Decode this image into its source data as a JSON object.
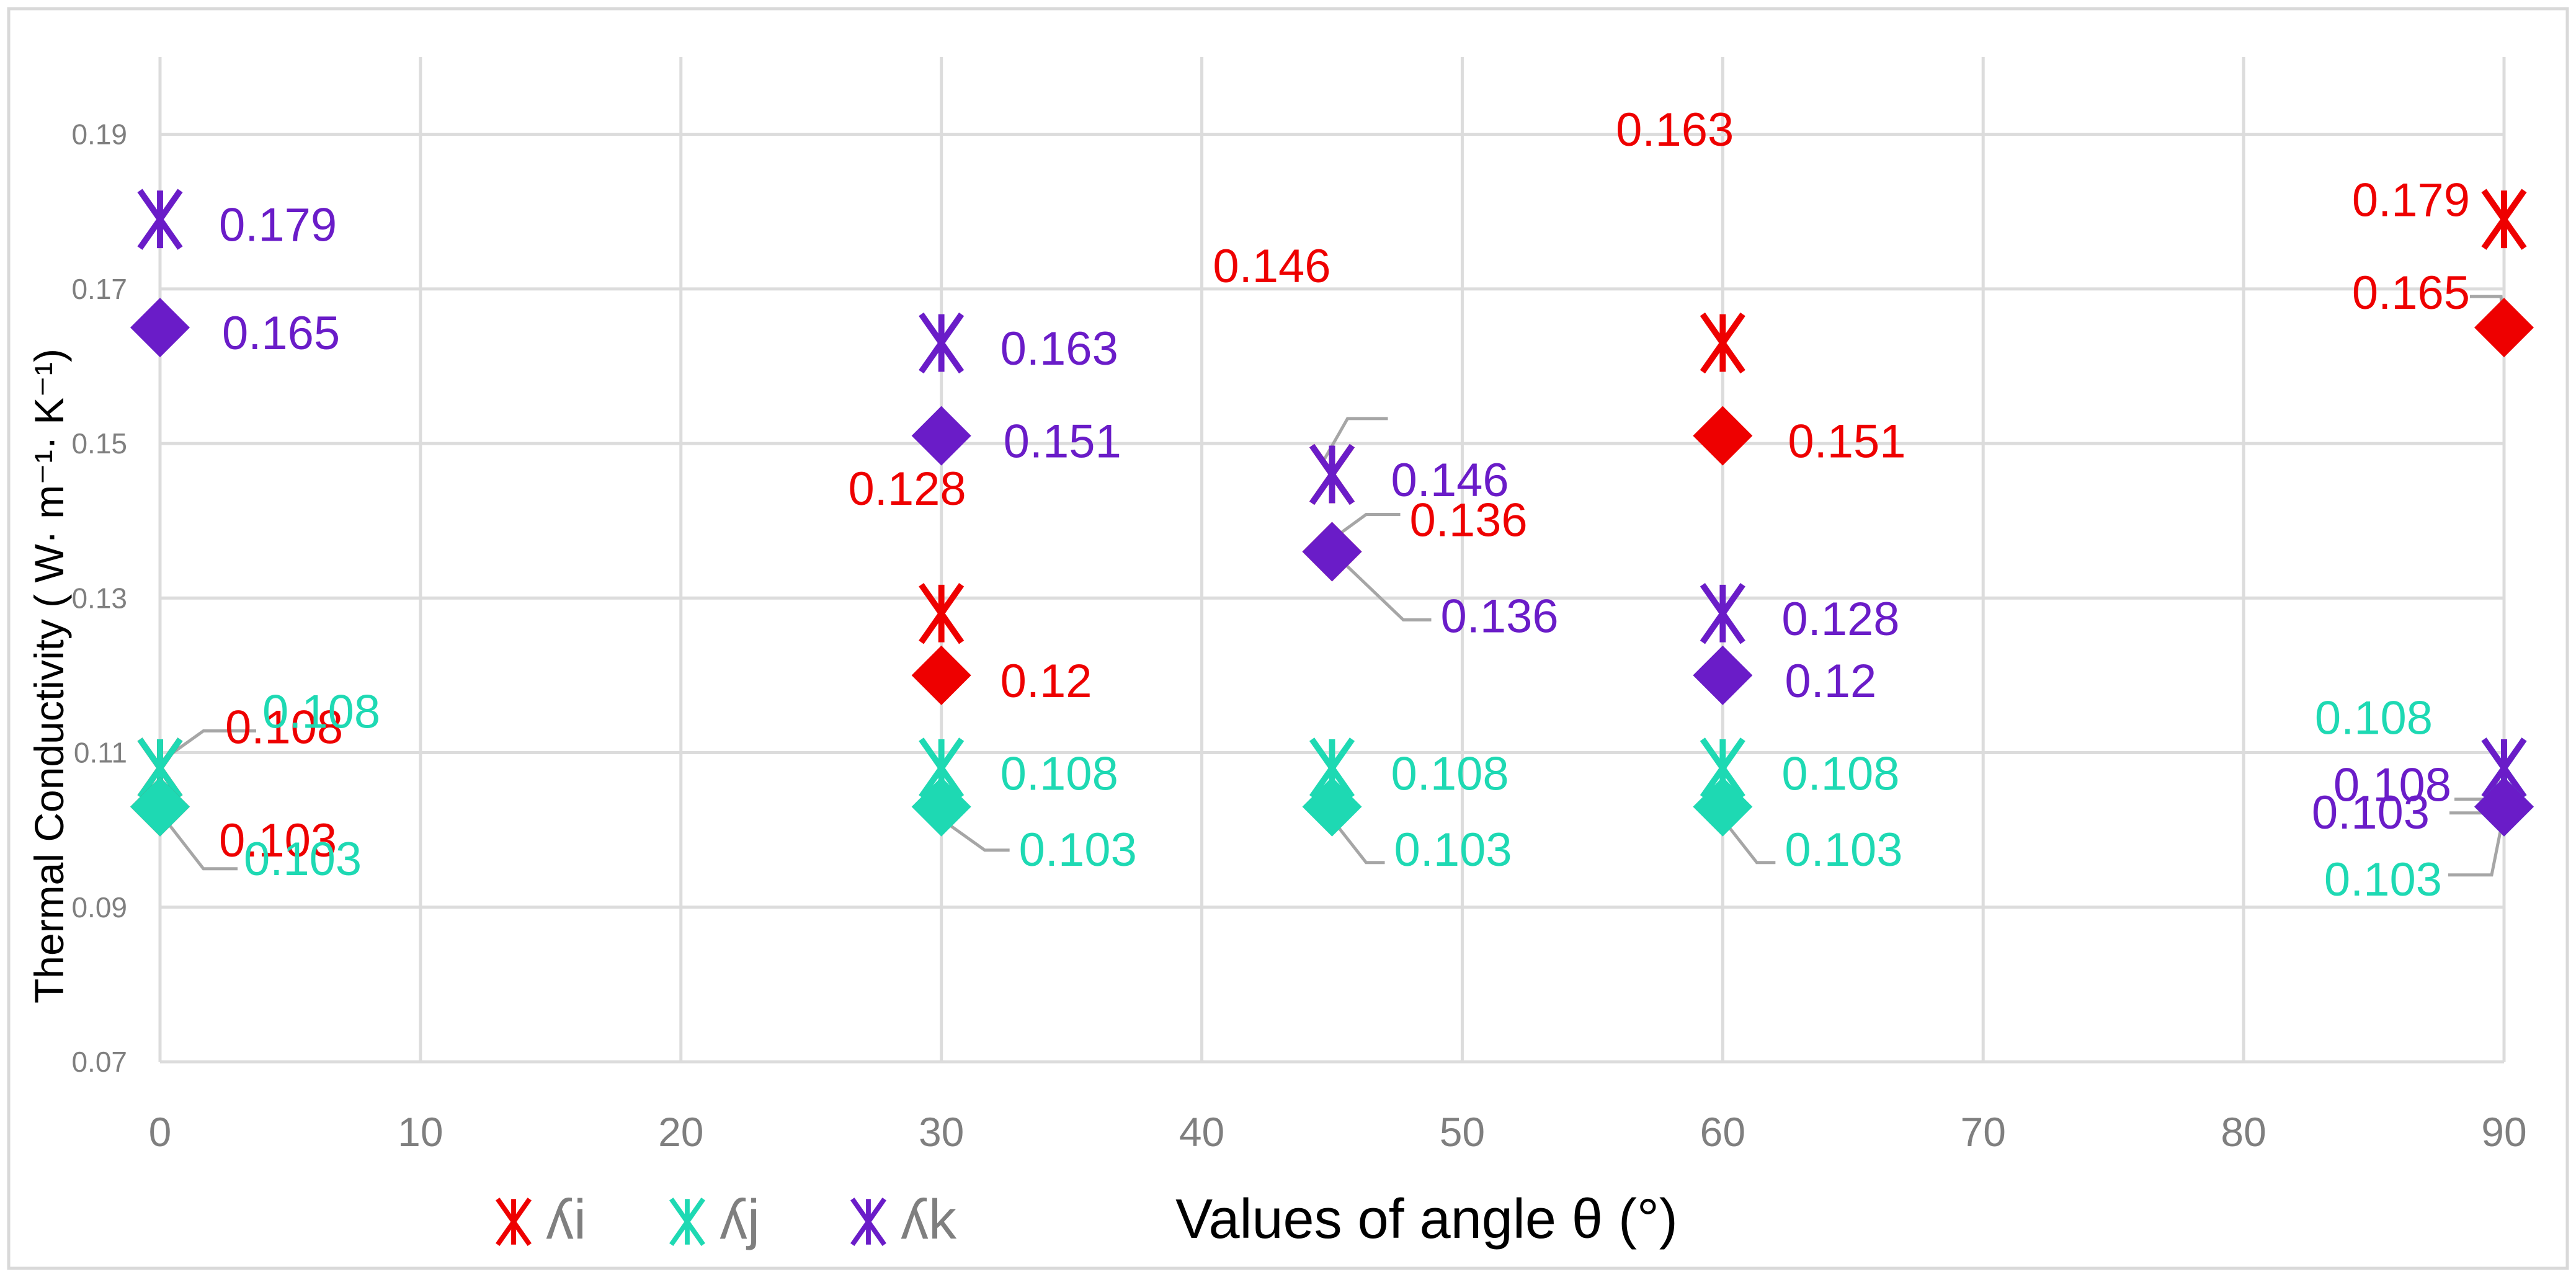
{
  "colors": {
    "red": "#ee0000",
    "teal": "#1ed9b3",
    "purple": "#6a1cc8",
    "grid": "#dcdcdc",
    "tick": "#7f7f7f",
    "leader": "#a6a6a6",
    "frame": "#d9d9d9"
  },
  "chart_data": {
    "type": "scatter",
    "title": "",
    "xlabel": "Values of angle θ (°)",
    "ylabel": "Thermal Conductivity ( W· m⁻¹· K⁻¹)",
    "xlim": [
      0,
      90
    ],
    "ylim": [
      0.07,
      0.2
    ],
    "x_ticks": [
      0,
      10,
      20,
      30,
      40,
      50,
      60,
      70,
      80,
      90
    ],
    "x_tick_labels": [
      "0",
      "10",
      "20",
      "30",
      "40",
      "50",
      "60",
      "70",
      "80",
      "90"
    ],
    "y_ticks": [
      0.07,
      0.09,
      0.11,
      0.13,
      0.15,
      0.17,
      0.19
    ],
    "y_tick_labels": [
      "0.07",
      "0.09",
      "0.11",
      "0.13",
      "0.15",
      "0.17",
      "0.19"
    ],
    "grid": true,
    "legend": {
      "position": "bottom-left",
      "entries": [
        "ʎi",
        "ʎj",
        "ʎk"
      ]
    },
    "series": [
      {
        "name": "ʎi",
        "marker": "asterisk",
        "color": "red",
        "points": [
          {
            "x": 0,
            "y": 0.108,
            "label": "0.108"
          },
          {
            "x": 30,
            "y": 0.128,
            "label": "0.128"
          },
          {
            "x": 45,
            "y": 0.146,
            "label": "0.146"
          },
          {
            "x": 60,
            "y": 0.163,
            "label": "0.163"
          },
          {
            "x": 90,
            "y": 0.179,
            "label": "0.179"
          }
        ]
      },
      {
        "name": "ʎj",
        "marker": "asterisk",
        "color": "teal",
        "points": [
          {
            "x": 0,
            "y": 0.108,
            "label": "0.108"
          },
          {
            "x": 30,
            "y": 0.108,
            "label": "0.108"
          },
          {
            "x": 45,
            "y": 0.108,
            "label": "0.108"
          },
          {
            "x": 60,
            "y": 0.108,
            "label": "0.108"
          },
          {
            "x": 90,
            "y": 0.108,
            "label": "0.108"
          }
        ]
      },
      {
        "name": "ʎk",
        "marker": "asterisk",
        "color": "purple",
        "points": [
          {
            "x": 0,
            "y": 0.179,
            "label": "0.179"
          },
          {
            "x": 30,
            "y": 0.163,
            "label": "0.163"
          },
          {
            "x": 45,
            "y": 0.146,
            "label": "0.146"
          },
          {
            "x": 60,
            "y": 0.128,
            "label": "0.128"
          },
          {
            "x": 90,
            "y": 0.108,
            "label": "0.108"
          }
        ]
      },
      {
        "name": "ʎi (diamond)",
        "marker": "diamond",
        "color": "red",
        "in_legend": false,
        "points": [
          {
            "x": 0,
            "y": 0.103,
            "label": "0.103"
          },
          {
            "x": 30,
            "y": 0.12,
            "label": "0.12"
          },
          {
            "x": 45,
            "y": 0.136,
            "label": "0.136"
          },
          {
            "x": 60,
            "y": 0.151,
            "label": "0.151"
          },
          {
            "x": 90,
            "y": 0.165,
            "label": "0.165"
          }
        ]
      },
      {
        "name": "ʎj (diamond)",
        "marker": "diamond",
        "color": "teal",
        "in_legend": false,
        "points": [
          {
            "x": 0,
            "y": 0.103,
            "label": "0.103"
          },
          {
            "x": 30,
            "y": 0.103,
            "label": "0.103"
          },
          {
            "x": 45,
            "y": 0.103,
            "label": "0.103"
          },
          {
            "x": 60,
            "y": 0.103,
            "label": "0.103"
          },
          {
            "x": 90,
            "y": 0.103,
            "label": "0.103"
          }
        ]
      },
      {
        "name": "ʎk (diamond)",
        "marker": "diamond",
        "color": "purple",
        "in_legend": false,
        "points": [
          {
            "x": 0,
            "y": 0.165,
            "label": "0.165"
          },
          {
            "x": 30,
            "y": 0.151,
            "label": "0.151"
          },
          {
            "x": 45,
            "y": 0.136,
            "label": "0.136"
          },
          {
            "x": 60,
            "y": 0.12,
            "label": "0.12"
          },
          {
            "x": 90,
            "y": 0.103,
            "label": "0.103"
          }
        ]
      }
    ]
  }
}
